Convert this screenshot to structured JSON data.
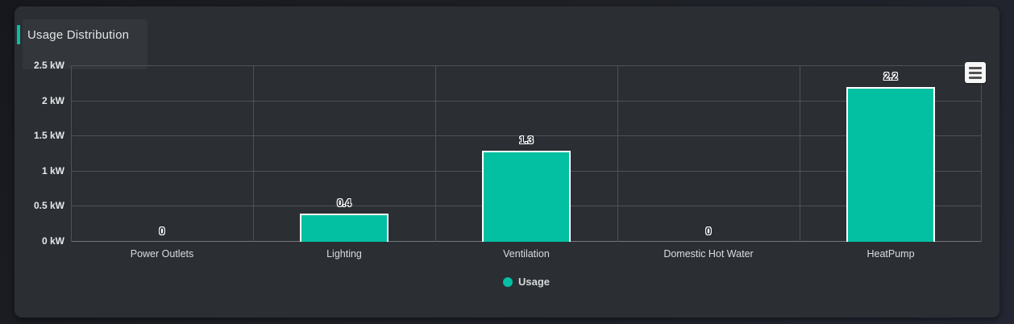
{
  "panel": {
    "title": "Usage Distribution"
  },
  "menu": {
    "icon": "hamburger-menu-icon"
  },
  "colors": {
    "accent_teal": "#07bfa3",
    "bar_fill": "#03c0a2",
    "bar_border": "#ffffff",
    "card_bg": "#2b2e33",
    "page_bg": "#1e2026",
    "grid_line": "#4e5157"
  },
  "chart_data": {
    "type": "bar",
    "title": "Usage Distribution",
    "categories": [
      "Power Outlets",
      "Lighting",
      "Ventilation",
      "Domestic Hot Water",
      "HeatPump"
    ],
    "values": [
      0,
      0.4,
      1.3,
      0,
      2.2
    ],
    "value_labels": [
      "0",
      "0.4",
      "1.3",
      "0",
      "2.2"
    ],
    "unit": "kW",
    "series_name": "Usage",
    "y_ticks": [
      "0 kW",
      "0.5 kW",
      "1 kW",
      "1.5 kW",
      "2 kW",
      "2.5 kW"
    ],
    "ylim": [
      0,
      2.5
    ],
    "y_tick_step": 0.5,
    "xlabel": "",
    "ylabel": "",
    "grid": true,
    "legend_position": "bottom-center",
    "legend": [
      {
        "name": "Usage",
        "color": "#03c0a2"
      }
    ]
  }
}
